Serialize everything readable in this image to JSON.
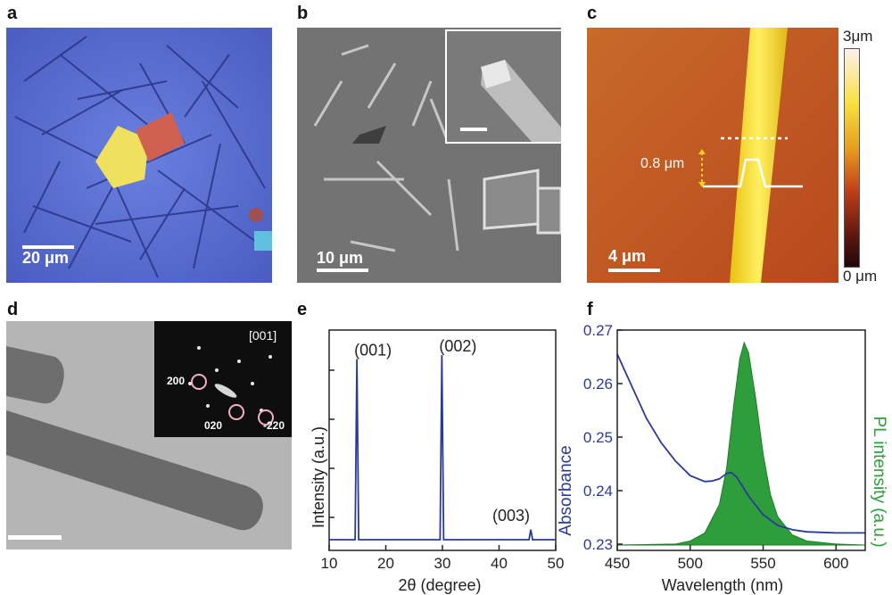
{
  "panels": {
    "a": {
      "letter": "a",
      "scale": "20 μm"
    },
    "b": {
      "letter": "b",
      "scale": "10 μm"
    },
    "c": {
      "letter": "c",
      "scale": "4 μm",
      "height_label": "0.8 μm",
      "cbar_top": "3μm",
      "cbar_bottom": "0 μm"
    },
    "d": {
      "letter": "d",
      "zone": "[001]",
      "spots": [
        "200",
        "020",
        "-220"
      ]
    },
    "e": {
      "letter": "e"
    },
    "f": {
      "letter": "f"
    }
  },
  "chart_data": [
    {
      "type": "line",
      "panel": "e",
      "xlabel": "2θ (degree)",
      "ylabel": "Intensity (a.u.)",
      "xlim": [
        10,
        50
      ],
      "xticks": [
        "10",
        "20",
        "30",
        "40",
        "50"
      ],
      "peaks": [
        {
          "x": 14.9,
          "label": "(001)",
          "height": 0.9
        },
        {
          "x": 29.9,
          "label": "(002)",
          "height": 0.92
        },
        {
          "x": 45.6,
          "label": "(003)",
          "height": 0.05
        }
      ],
      "color": "#2a3a9a"
    },
    {
      "type": "line",
      "panel": "f",
      "xlabel": "Wavelength (nm)",
      "ylabel": "Absorbance",
      "ylabel2": "PL intensity (a.u.)",
      "xlim": [
        450,
        620
      ],
      "ylim": [
        0.23,
        0.27
      ],
      "xticks": [
        "450",
        "500",
        "550",
        "600"
      ],
      "yticks": [
        "0.23",
        "0.24",
        "0.25",
        "0.26",
        "0.27"
      ],
      "absorbance": {
        "color": "#2a3a9a",
        "x": [
          450,
          460,
          470,
          480,
          490,
          500,
          510,
          515,
          520,
          525,
          528,
          532,
          540,
          550,
          560,
          570,
          580,
          590,
          600,
          610,
          620
        ],
        "y": [
          0.2655,
          0.2595,
          0.2535,
          0.249,
          0.2455,
          0.2428,
          0.2417,
          0.2418,
          0.2422,
          0.2432,
          0.2434,
          0.2425,
          0.239,
          0.2355,
          0.2335,
          0.2327,
          0.2323,
          0.2322,
          0.2321,
          0.2321,
          0.2321
        ]
      },
      "pl": {
        "color": "#2e9e3c",
        "x": [
          450,
          490,
          500,
          510,
          520,
          525,
          530,
          534,
          537,
          540,
          545,
          550,
          555,
          560,
          570,
          580,
          600,
          620
        ],
        "y": [
          0.0,
          0.005,
          0.02,
          0.06,
          0.2,
          0.38,
          0.7,
          0.92,
          1.0,
          0.95,
          0.72,
          0.45,
          0.25,
          0.14,
          0.05,
          0.02,
          0.005,
          0.0
        ]
      }
    }
  ]
}
